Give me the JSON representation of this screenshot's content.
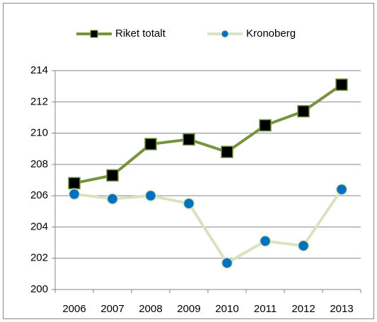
{
  "chart_data": {
    "type": "line",
    "categories": [
      "2006",
      "2007",
      "2008",
      "2009",
      "2010",
      "2011",
      "2012",
      "2013"
    ],
    "series": [
      {
        "name": "Riket totalt",
        "color": "#77933c",
        "marker_color": "#000000",
        "marker": "square",
        "values": [
          206.8,
          207.3,
          209.3,
          209.6,
          208.8,
          210.5,
          211.4,
          213.1
        ]
      },
      {
        "name": "Kronoberg",
        "color": "#d7e4bd",
        "marker_color": "#0070c0",
        "marker": "circle",
        "values": [
          206.1,
          205.8,
          206.0,
          205.5,
          201.7,
          203.1,
          202.8,
          206.4
        ]
      }
    ],
    "ylim": [
      200,
      214
    ],
    "yticks": [
      200,
      202,
      204,
      206,
      208,
      210,
      212,
      214
    ],
    "grid": true,
    "legend": "top"
  }
}
